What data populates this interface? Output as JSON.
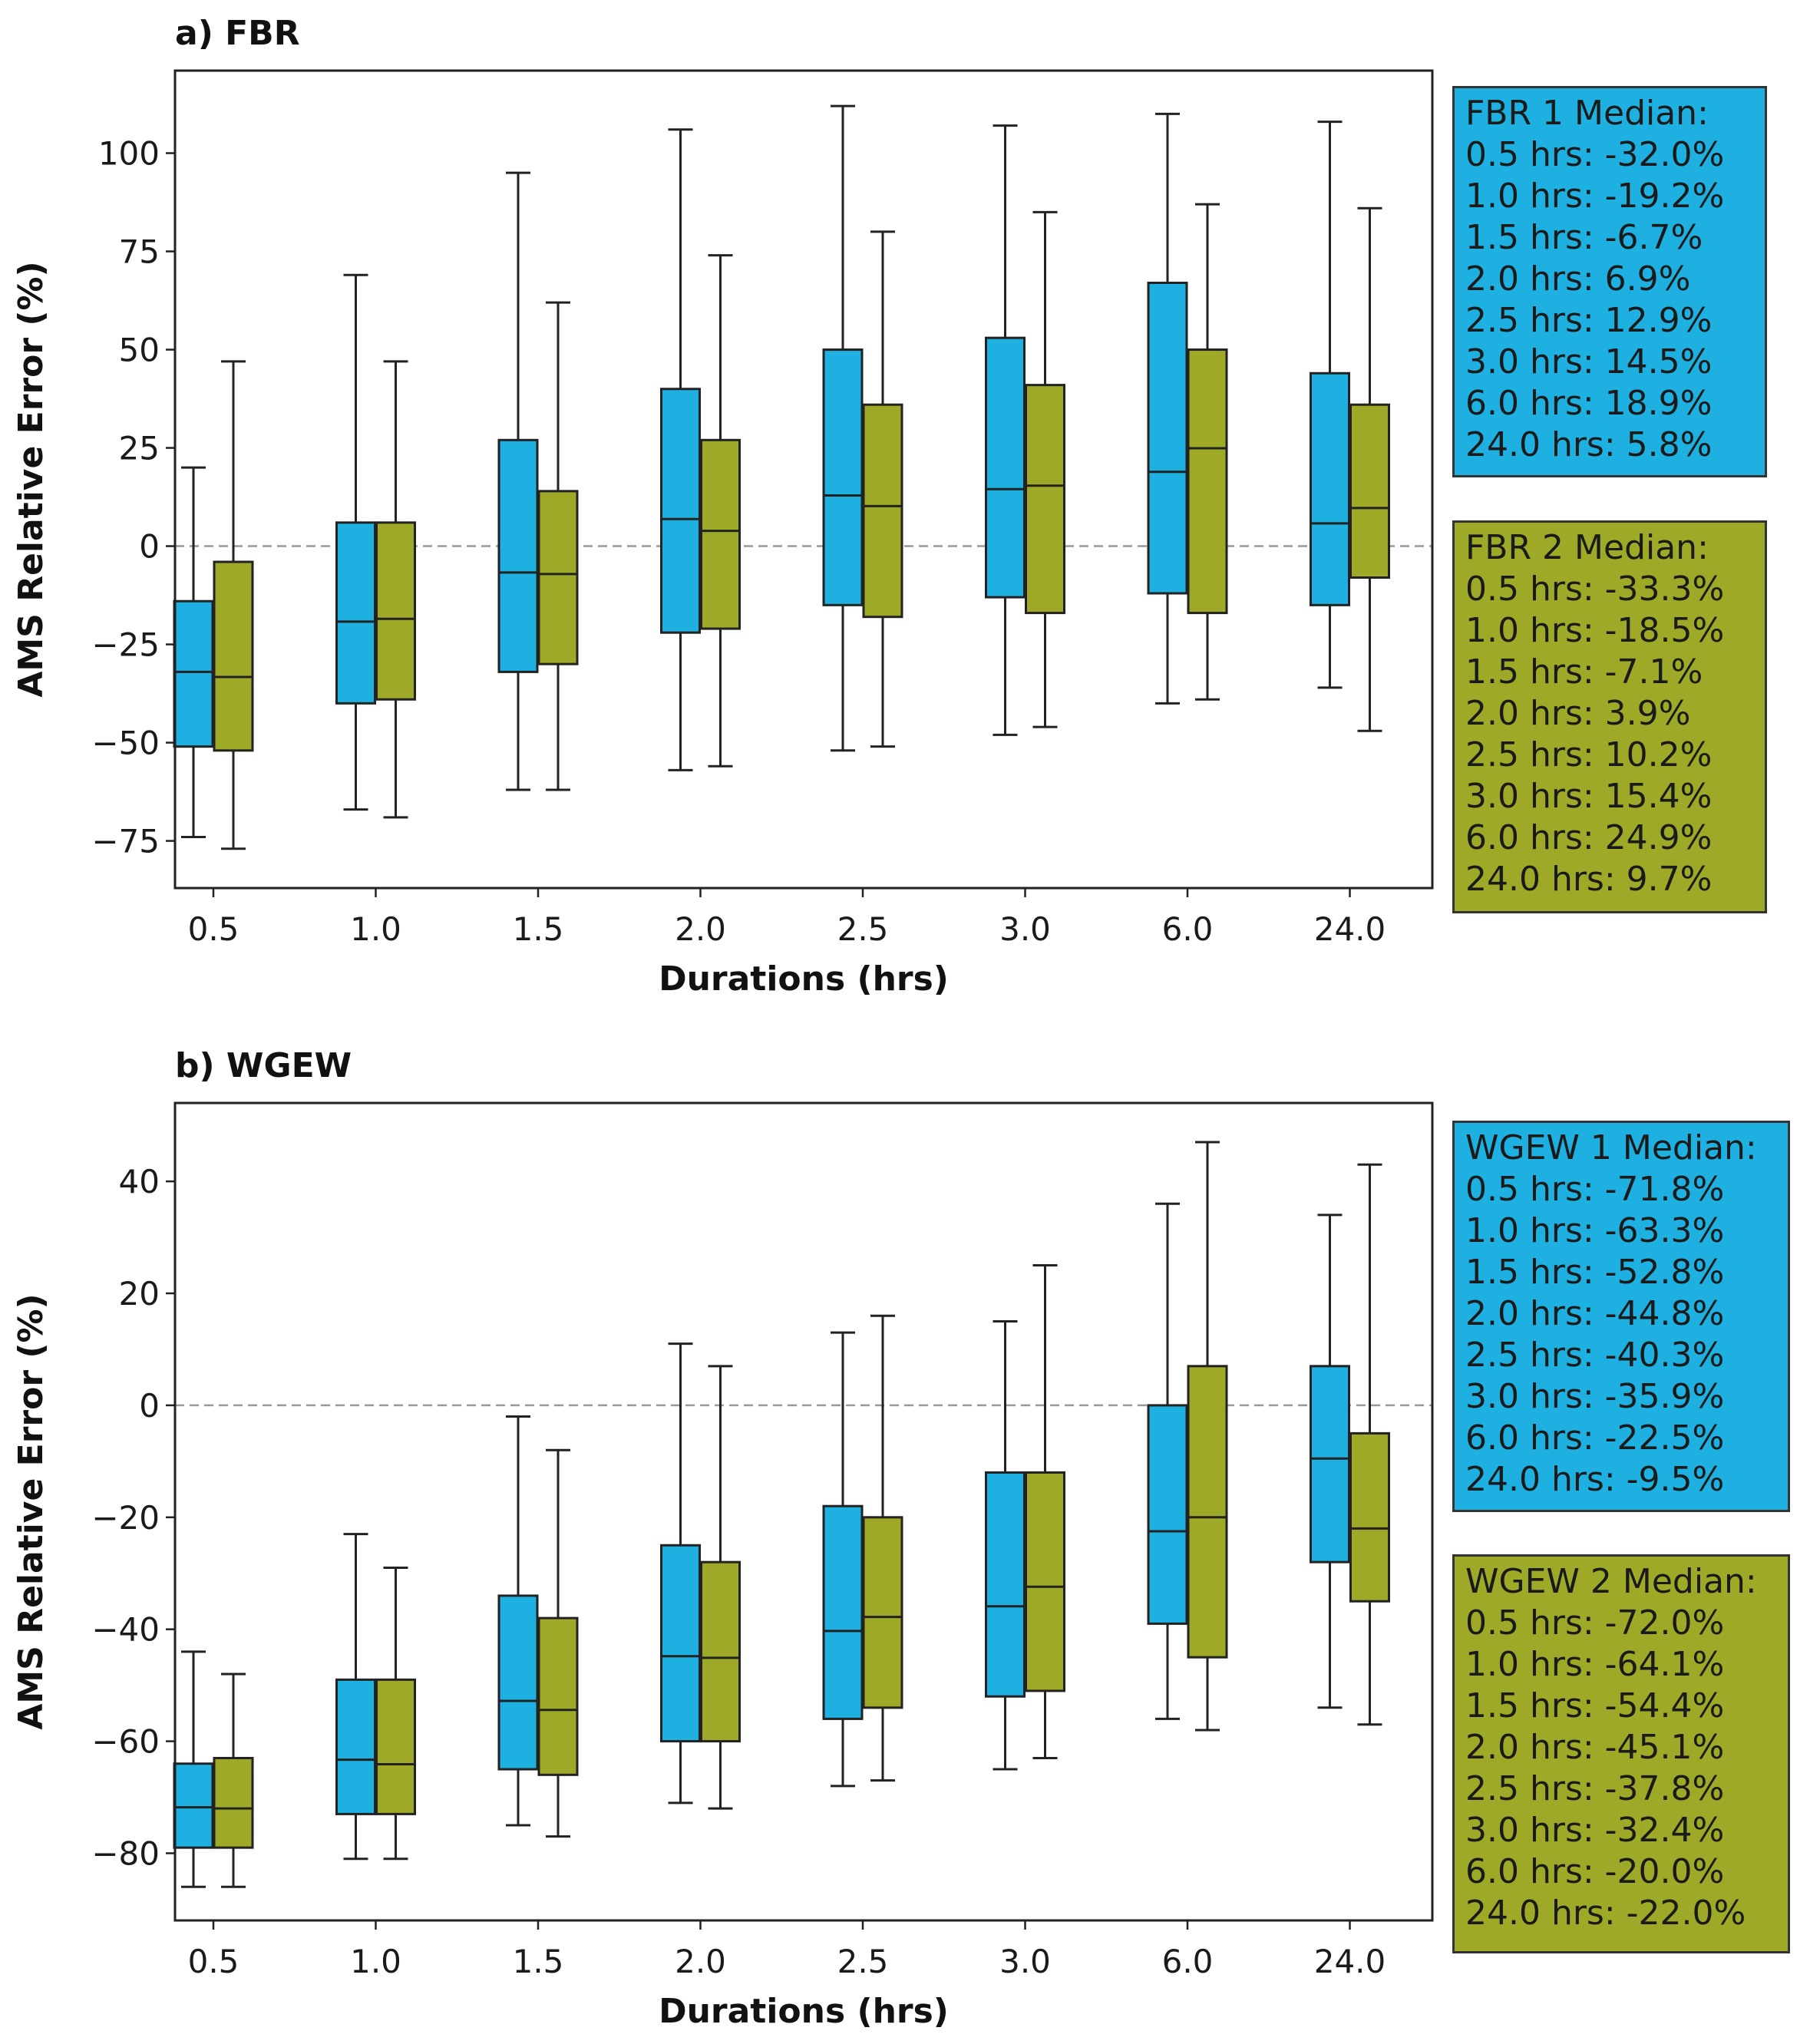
{
  "colors": {
    "series1": "#1eb0e0",
    "series2": "#9eaa27",
    "edge": "#222222"
  },
  "chart_data": [
    {
      "type": "box",
      "title": "a) FBR",
      "xlabel": "Durations (hrs)",
      "ylabel": "AMS Relative Error (%)",
      "categories": [
        "0.5",
        "1.0",
        "1.5",
        "2.0",
        "2.5",
        "3.0",
        "6.0",
        "24.0"
      ],
      "ylim": [
        -87,
        121
      ],
      "yticks": [
        -75,
        -50,
        -25,
        0,
        25,
        50,
        75,
        100
      ],
      "ytick_labels": [
        "−75",
        "−50",
        "−25",
        "0",
        "25",
        "50",
        "75",
        "100"
      ],
      "reference_line": 0,
      "series": [
        {
          "name": "FBR 1",
          "boxes": [
            {
              "whislo": -74,
              "q1": -51,
              "med": -32.0,
              "q3": -14,
              "whishi": 20
            },
            {
              "whislo": -67,
              "q1": -40,
              "med": -19.2,
              "q3": 6,
              "whishi": 69
            },
            {
              "whislo": -62,
              "q1": -32,
              "med": -6.7,
              "q3": 27,
              "whishi": 95
            },
            {
              "whislo": -57,
              "q1": -22,
              "med": 6.9,
              "q3": 40,
              "whishi": 106
            },
            {
              "whislo": -52,
              "q1": -15,
              "med": 12.9,
              "q3": 50,
              "whishi": 112
            },
            {
              "whislo": -48,
              "q1": -13,
              "med": 14.5,
              "q3": 53,
              "whishi": 107
            },
            {
              "whislo": -40,
              "q1": -12,
              "med": 18.9,
              "q3": 67,
              "whishi": 110
            },
            {
              "whislo": -36,
              "q1": -15,
              "med": 5.8,
              "q3": 44,
              "whishi": 108
            }
          ]
        },
        {
          "name": "FBR 2",
          "boxes": [
            {
              "whislo": -77,
              "q1": -52,
              "med": -33.3,
              "q3": -4,
              "whishi": 47
            },
            {
              "whislo": -69,
              "q1": -39,
              "med": -18.5,
              "q3": 6,
              "whishi": 47
            },
            {
              "whislo": -62,
              "q1": -30,
              "med": -7.1,
              "q3": 14,
              "whishi": 62
            },
            {
              "whislo": -56,
              "q1": -21,
              "med": 3.9,
              "q3": 27,
              "whishi": 74
            },
            {
              "whislo": -51,
              "q1": -18,
              "med": 10.2,
              "q3": 36,
              "whishi": 80
            },
            {
              "whislo": -46,
              "q1": -17,
              "med": 15.4,
              "q3": 41,
              "whishi": 85
            },
            {
              "whislo": -39,
              "q1": -17,
              "med": 24.9,
              "q3": 50,
              "whishi": 87
            },
            {
              "whislo": -47,
              "q1": -8,
              "med": 9.7,
              "q3": 36,
              "whishi": 86
            }
          ]
        }
      ],
      "legend_boxes": [
        {
          "title": "FBR 1 Median:",
          "lines": [
            "0.5 hrs: -32.0%",
            "1.0 hrs: -19.2%",
            "1.5 hrs: -6.7%",
            "2.0 hrs: 6.9%",
            "2.5 hrs: 12.9%",
            "3.0 hrs: 14.5%",
            "6.0 hrs: 18.9%",
            "24.0 hrs: 5.8%"
          ]
        },
        {
          "title": "FBR 2 Median:",
          "lines": [
            "0.5 hrs: -33.3%",
            "1.0 hrs: -18.5%",
            "1.5 hrs: -7.1%",
            "2.0 hrs: 3.9%",
            "2.5 hrs: 10.2%",
            "3.0 hrs: 15.4%",
            "6.0 hrs: 24.9%",
            "24.0 hrs: 9.7%"
          ]
        }
      ]
    },
    {
      "type": "box",
      "title": "b) WGEW",
      "xlabel": "Durations (hrs)",
      "ylabel": "AMS Relative Error (%)",
      "categories": [
        "0.5",
        "1.0",
        "1.5",
        "2.0",
        "2.5",
        "3.0",
        "6.0",
        "24.0"
      ],
      "ylim": [
        -92,
        54
      ],
      "yticks": [
        -80,
        -60,
        -40,
        -20,
        0,
        20,
        40
      ],
      "ytick_labels": [
        "−80",
        "−60",
        "−40",
        "−20",
        "0",
        "20",
        "40"
      ],
      "reference_line": 0,
      "series": [
        {
          "name": "WGEW 1",
          "boxes": [
            {
              "whislo": -86,
              "q1": -79,
              "med": -71.8,
              "q3": -64,
              "whishi": -44
            },
            {
              "whislo": -81,
              "q1": -73,
              "med": -63.3,
              "q3": -49,
              "whishi": -23
            },
            {
              "whislo": -75,
              "q1": -65,
              "med": -52.8,
              "q3": -34,
              "whishi": -2
            },
            {
              "whislo": -71,
              "q1": -60,
              "med": -44.8,
              "q3": -25,
              "whishi": 11
            },
            {
              "whislo": -68,
              "q1": -56,
              "med": -40.3,
              "q3": -18,
              "whishi": 13
            },
            {
              "whislo": -65,
              "q1": -52,
              "med": -35.9,
              "q3": -12,
              "whishi": 15
            },
            {
              "whislo": -56,
              "q1": -39,
              "med": -22.5,
              "q3": 0,
              "whishi": 36
            },
            {
              "whislo": -54,
              "q1": -28,
              "med": -9.5,
              "q3": 7,
              "whishi": 34
            }
          ]
        },
        {
          "name": "WGEW 2",
          "boxes": [
            {
              "whislo": -86,
              "q1": -79,
              "med": -72.0,
              "q3": -63,
              "whishi": -48
            },
            {
              "whislo": -81,
              "q1": -73,
              "med": -64.1,
              "q3": -49,
              "whishi": -29
            },
            {
              "whislo": -77,
              "q1": -66,
              "med": -54.4,
              "q3": -38,
              "whishi": -8
            },
            {
              "whislo": -72,
              "q1": -60,
              "med": -45.1,
              "q3": -28,
              "whishi": 7
            },
            {
              "whislo": -67,
              "q1": -54,
              "med": -37.8,
              "q3": -20,
              "whishi": 16
            },
            {
              "whislo": -63,
              "q1": -51,
              "med": -32.4,
              "q3": -12,
              "whishi": 25
            },
            {
              "whislo": -58,
              "q1": -45,
              "med": -20.0,
              "q3": 7,
              "whishi": 47
            },
            {
              "whislo": -57,
              "q1": -35,
              "med": -22.0,
              "q3": -5,
              "whishi": 43
            }
          ]
        }
      ],
      "legend_boxes": [
        {
          "title": "WGEW 1 Median:",
          "lines": [
            "0.5 hrs: -71.8%",
            "1.0 hrs: -63.3%",
            "1.5 hrs: -52.8%",
            "2.0 hrs: -44.8%",
            "2.5 hrs: -40.3%",
            "3.0 hrs: -35.9%",
            "6.0 hrs: -22.5%",
            "24.0 hrs: -9.5%"
          ]
        },
        {
          "title": "WGEW 2 Median:",
          "lines": [
            "0.5 hrs: -72.0%",
            "1.0 hrs: -64.1%",
            "1.5 hrs: -54.4%",
            "2.0 hrs: -45.1%",
            "2.5 hrs: -37.8%",
            "3.0 hrs: -32.4%",
            "6.0 hrs: -20.0%",
            "24.0 hrs: -22.0%"
          ]
        }
      ]
    }
  ]
}
